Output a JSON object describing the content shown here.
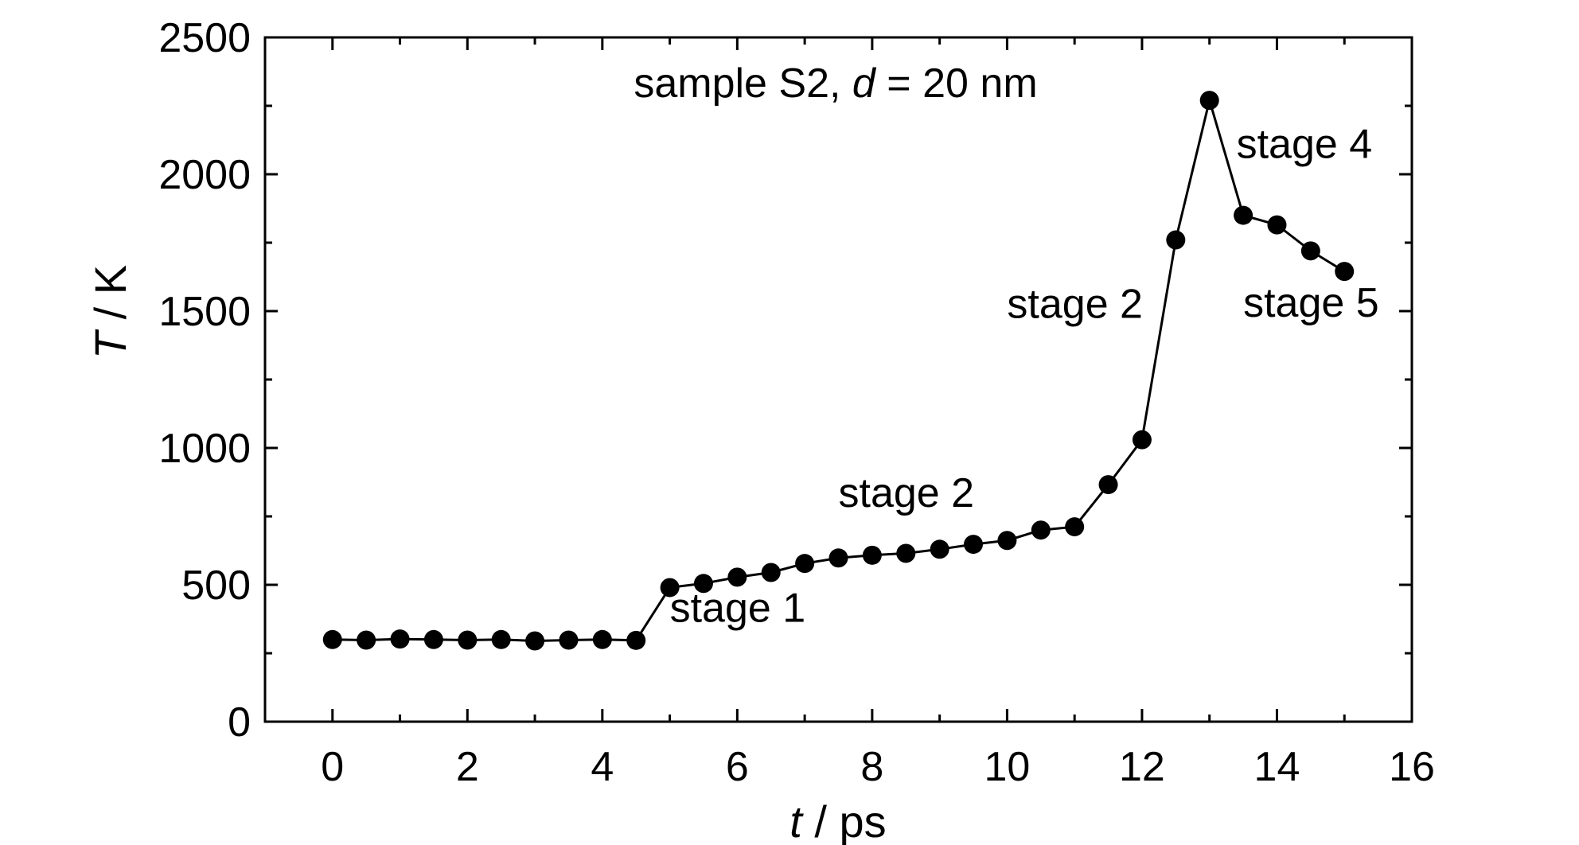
{
  "chart_data": {
    "type": "line",
    "title": "sample S2, d = 20 nm",
    "title_parts": {
      "prefix": "sample S2, ",
      "italic": "d",
      "suffix": " = 20 nm"
    },
    "xlabel": {
      "italic": "t",
      "rest": " / ps"
    },
    "ylabel": {
      "italic": "T",
      "rest": " / K"
    },
    "xlim": [
      -1,
      16
    ],
    "ylim": [
      0,
      2500
    ],
    "xticks": [
      0,
      2,
      4,
      6,
      8,
      10,
      12,
      14,
      16
    ],
    "xticks_minor": [
      -1,
      1,
      3,
      5,
      7,
      9,
      11,
      13,
      15
    ],
    "yticks": [
      0,
      500,
      1000,
      1500,
      2000,
      2500
    ],
    "yticks_minor": [
      250,
      750,
      1250,
      1750,
      2250
    ],
    "grid": false,
    "marker": "filled-circle",
    "color": "#000000",
    "x": [
      0,
      0.5,
      1,
      1.5,
      2,
      2.5,
      3,
      3.5,
      4,
      4.5,
      5,
      5.5,
      6,
      6.5,
      7,
      7.5,
      8,
      8.5,
      9,
      9.5,
      10,
      10.5,
      11,
      11.5,
      12,
      12.5,
      13,
      13.5,
      14,
      14.5,
      15
    ],
    "y": [
      300,
      298,
      302,
      300,
      298,
      300,
      295,
      298,
      300,
      297,
      490,
      505,
      528,
      545,
      578,
      598,
      608,
      615,
      630,
      648,
      662,
      700,
      712,
      866,
      1030,
      1760,
      2270,
      1850,
      1815,
      1720,
      1645
    ],
    "annotations": [
      {
        "text": "stage 1",
        "x": 5.0,
        "y": 365
      },
      {
        "text": "stage 2",
        "x": 7.5,
        "y": 785
      },
      {
        "text": "stage 2",
        "x": 10.0,
        "y": 1475
      },
      {
        "text": "stage 4",
        "x": 13.4,
        "y": 2060
      },
      {
        "text": "stage 5",
        "x": 13.5,
        "y": 1480
      }
    ]
  }
}
